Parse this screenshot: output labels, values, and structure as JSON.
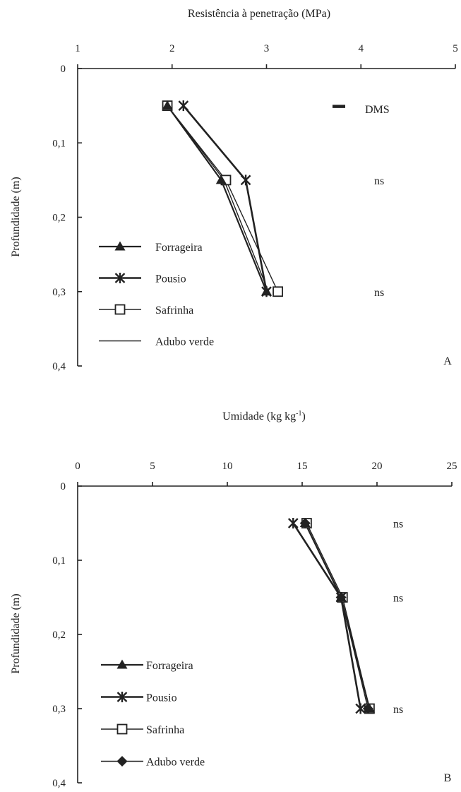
{
  "chart_data": [
    {
      "type": "line",
      "panel_label": "A",
      "xlabel": "Resistência à penetração (MPa)",
      "ylabel": "Profundidade (m)",
      "xlim": [
        1,
        5
      ],
      "ylim": [
        0,
        0.4
      ],
      "x_axis_position": "top",
      "y_inverted": true,
      "xticks": [
        "1",
        "2",
        "3",
        "4",
        "5"
      ],
      "yticks": [
        "0",
        "0,1",
        "0,2",
        "0,3",
        "0,4"
      ],
      "depths": [
        0.05,
        0.15,
        0.3
      ],
      "series": [
        {
          "name": "Forrageira",
          "marker": "triangle",
          "x": [
            1.95,
            2.52,
            3.0
          ]
        },
        {
          "name": "Pousio",
          "marker": "asterisk",
          "x": [
            2.12,
            2.78,
            3.0
          ]
        },
        {
          "name": "Safrinha",
          "marker": "square",
          "x": [
            1.95,
            2.57,
            3.12
          ]
        },
        {
          "name": "Adubo verde",
          "marker": "none",
          "x": [
            1.95,
            2.55,
            3.02
          ]
        }
      ],
      "legend_position": "lower-left",
      "dms": {
        "label": "DMS",
        "depth": 0.05
      },
      "annotations": [
        {
          "text": "ns",
          "depth": 0.15
        },
        {
          "text": "ns",
          "depth": 0.3
        }
      ]
    },
    {
      "type": "line",
      "panel_label": "B",
      "xlabel": "Umidade (kg kg",
      "xlabel_sup": "-1",
      "xlabel_end": ")",
      "ylabel": "Profundidade (m)",
      "xlim": [
        0,
        25
      ],
      "ylim": [
        0,
        0.4
      ],
      "x_axis_position": "top",
      "y_inverted": true,
      "xticks": [
        "0",
        "5",
        "10",
        "15",
        "20",
        "25"
      ],
      "yticks": [
        "0",
        "0,1",
        "0,2",
        "0,3",
        "0,4"
      ],
      "depths": [
        0.05,
        0.15,
        0.3
      ],
      "series": [
        {
          "name": "Forrageira",
          "marker": "triangle",
          "x": [
            15.2,
            17.6,
            19.5
          ]
        },
        {
          "name": "Pousio",
          "marker": "asterisk",
          "x": [
            14.4,
            17.6,
            18.9
          ]
        },
        {
          "name": "Safrinha",
          "marker": "square",
          "x": [
            15.3,
            17.7,
            19.5
          ]
        },
        {
          "name": "Adubo verde",
          "marker": "diamond",
          "x": [
            15.2,
            17.6,
            19.4
          ]
        }
      ],
      "legend_position": "lower-left",
      "annotations": [
        {
          "text": "ns",
          "depth": 0.05
        },
        {
          "text": "ns",
          "depth": 0.15
        },
        {
          "text": "ns",
          "depth": 0.3
        }
      ]
    }
  ]
}
